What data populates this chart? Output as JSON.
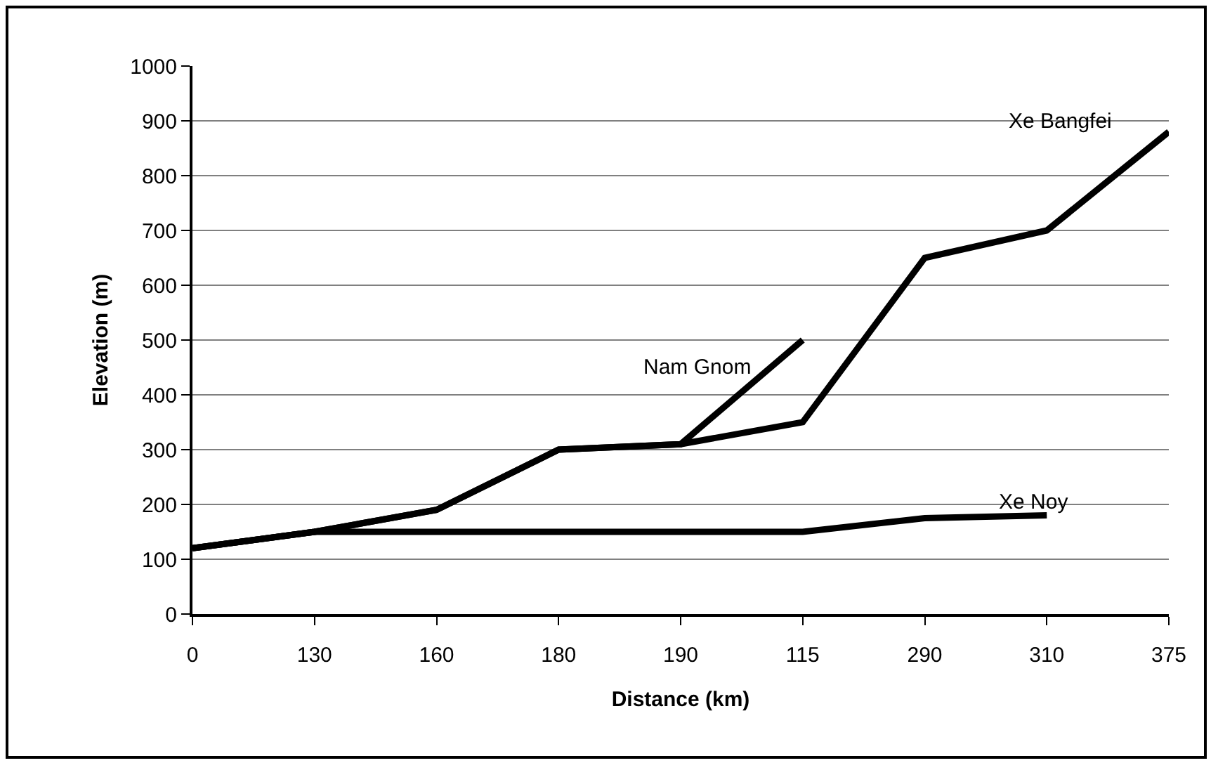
{
  "chart_data": {
    "type": "line",
    "xlabel": "Distance (km)",
    "ylabel": "Elevation (m)",
    "categories": [
      "0",
      "130",
      "160",
      "180",
      "190",
      "115",
      "290",
      "310",
      "375"
    ],
    "series": [
      {
        "name": "Xe Bangfei",
        "color": "#000000",
        "values": [
          120,
          150,
          190,
          300,
          310,
          350,
          650,
          700,
          880
        ]
      },
      {
        "name": "Nam Gnom",
        "color": "#000000",
        "values": [
          120,
          150,
          190,
          300,
          310,
          500,
          null,
          null,
          null
        ]
      },
      {
        "name": "Xe Noy",
        "color": "#000000",
        "values": [
          120,
          150,
          150,
          150,
          150,
          150,
          175,
          180,
          null
        ]
      }
    ],
    "ylim": [
      0,
      1000
    ],
    "yticks": [
      0,
      100,
      200,
      300,
      400,
      500,
      600,
      700,
      800,
      900,
      1000
    ],
    "grid": "y",
    "legend": false,
    "marker": "none",
    "line_style": "solid"
  }
}
